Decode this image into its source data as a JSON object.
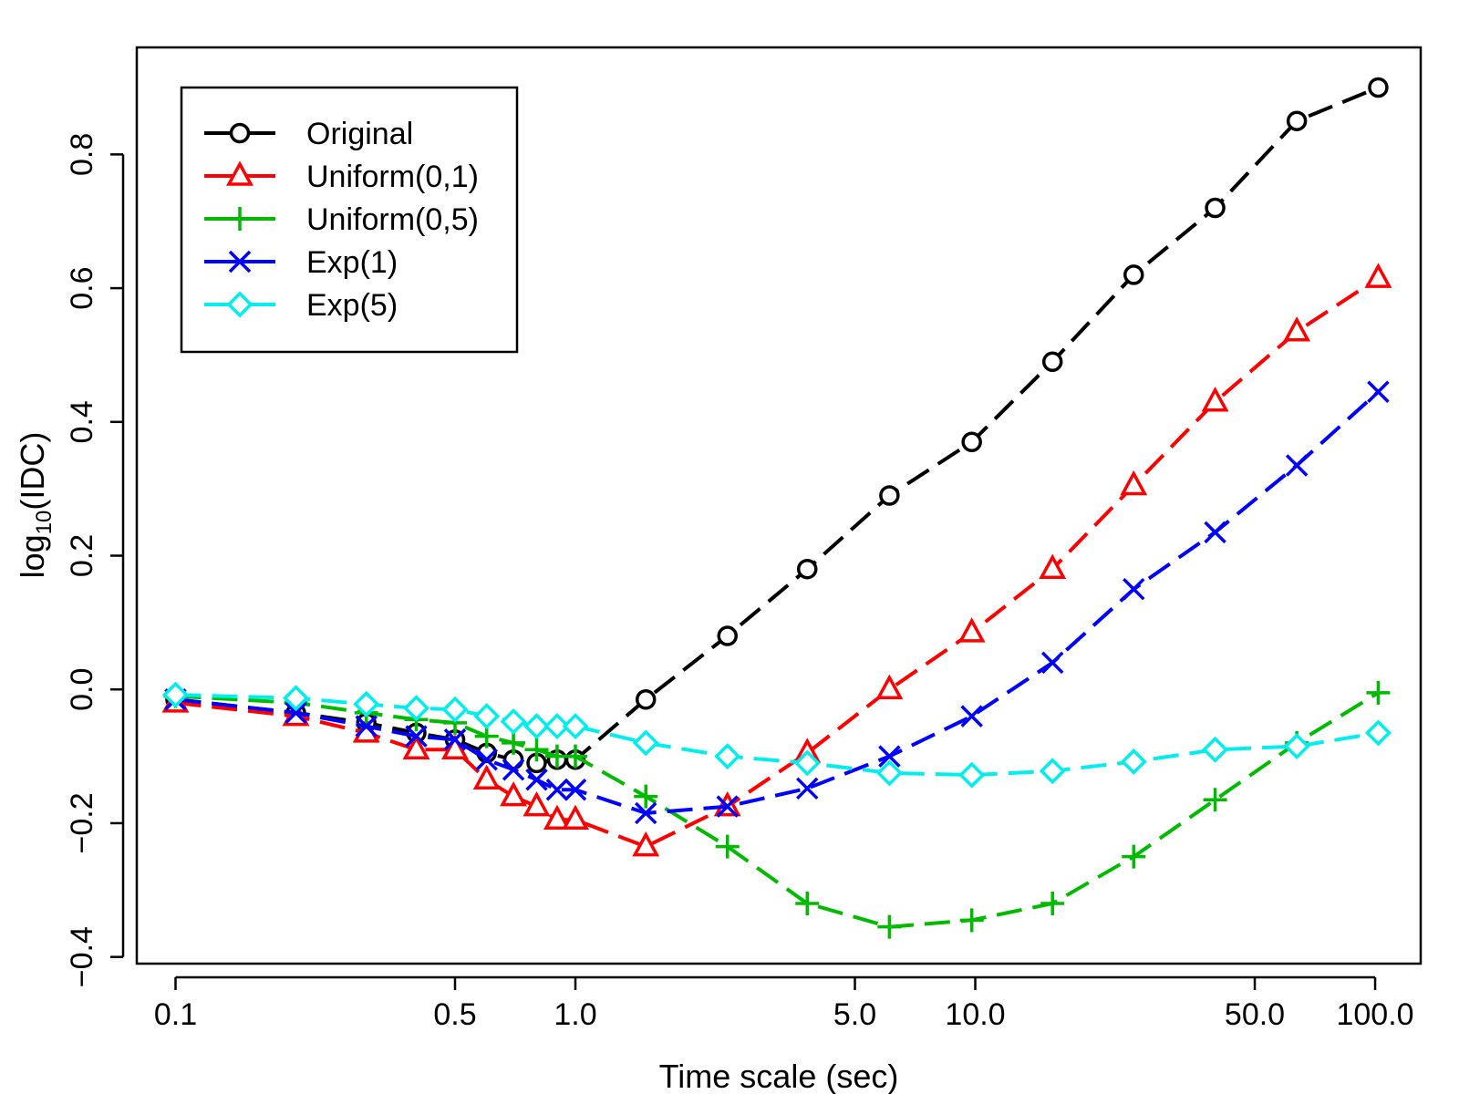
{
  "chart_data": {
    "type": "line",
    "title": "",
    "xlabel": "Time scale (sec)",
    "ylabel_main": "log",
    "ylabel_sub": "10",
    "ylabel_rest": "(IDC)",
    "x_scale": "log",
    "xlim": [
      0.08,
      130
    ],
    "ylim": [
      -0.41,
      0.96
    ],
    "x_ticks": [
      0.1,
      0.5,
      1.0,
      5.0,
      10.0,
      50.0,
      100.0
    ],
    "x_tick_labels": [
      "0.1",
      "0.5",
      "1.0",
      "5.0",
      "10.0",
      "50.0",
      "100.0"
    ],
    "y_ticks": [
      -0.4,
      -0.2,
      0.0,
      0.2,
      0.4,
      0.6,
      0.8
    ],
    "y_tick_labels": [
      "−0.4",
      "−0.2",
      "0.0",
      "0.2",
      "0.4",
      "0.6",
      "0.8"
    ],
    "grid": false,
    "legend_position": "top-left",
    "x": [
      0.1,
      0.2,
      0.3,
      0.4,
      0.5,
      0.6,
      0.7,
      0.8,
      0.9,
      1.0,
      1.5,
      2.4,
      3.8,
      6.1,
      9.8,
      15.6,
      24.9,
      39.8,
      63.7,
      101.8
    ],
    "series": [
      {
        "name": "Original",
        "color": "#000000",
        "marker": "circle",
        "values": [
          -0.015,
          -0.035,
          -0.05,
          -0.065,
          -0.075,
          -0.095,
          -0.105,
          -0.11,
          -0.105,
          -0.105,
          -0.015,
          0.08,
          0.18,
          0.29,
          0.37,
          0.49,
          0.62,
          0.72,
          0.85,
          0.9
        ]
      },
      {
        "name": "Uniform(0,1)",
        "color": "#ff0000",
        "marker": "triangle",
        "values": [
          -0.02,
          -0.04,
          -0.065,
          -0.09,
          -0.09,
          -0.135,
          -0.16,
          -0.175,
          -0.195,
          -0.195,
          -0.235,
          -0.175,
          -0.095,
          0.0,
          0.085,
          0.18,
          0.305,
          0.43,
          0.535,
          0.615
        ]
      },
      {
        "name": "Uniform(0,5)",
        "color": "#00bb00",
        "marker": "plus",
        "values": [
          -0.01,
          -0.02,
          -0.035,
          -0.045,
          -0.05,
          -0.07,
          -0.08,
          -0.09,
          -0.1,
          -0.1,
          -0.16,
          -0.235,
          -0.32,
          -0.355,
          -0.345,
          -0.32,
          -0.25,
          -0.165,
          -0.08,
          -0.005
        ]
      },
      {
        "name": "Exp(1)",
        "color": "#0000ff",
        "marker": "x",
        "values": [
          -0.015,
          -0.035,
          -0.055,
          -0.07,
          -0.075,
          -0.105,
          -0.12,
          -0.135,
          -0.15,
          -0.15,
          -0.185,
          -0.175,
          -0.148,
          -0.1,
          -0.04,
          0.04,
          0.15,
          0.235,
          0.335,
          0.445
        ]
      },
      {
        "name": "Exp(5)",
        "color": "#00eeee",
        "marker": "diamond",
        "values": [
          -0.008,
          -0.013,
          -0.022,
          -0.028,
          -0.03,
          -0.04,
          -0.048,
          -0.055,
          -0.055,
          -0.055,
          -0.08,
          -0.1,
          -0.11,
          -0.125,
          -0.128,
          -0.122,
          -0.108,
          -0.09,
          -0.085,
          -0.065
        ]
      }
    ]
  }
}
